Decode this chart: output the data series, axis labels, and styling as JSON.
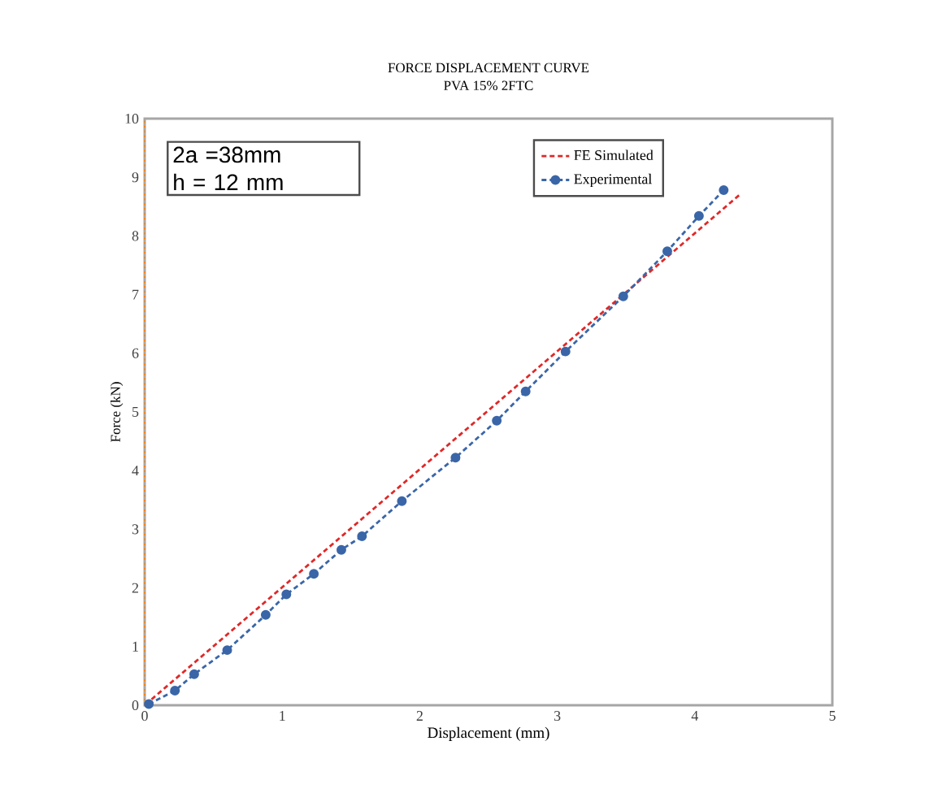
{
  "chart_data": {
    "type": "line",
    "title": "FORCE DISPLACEMENT CURVE",
    "subtitle": "PVA 15% 2FTC",
    "xlabel": "Displacement (mm)",
    "ylabel": "Force (kN)",
    "annotations": [
      "2a =38mm",
      "h  = 12 mm"
    ],
    "series": [
      {
        "name": "FE Simulated",
        "color": "#e02828",
        "marker": "none",
        "x": [
          0.05,
          4.33
        ],
        "values": [
          0.1,
          8.71
        ]
      },
      {
        "name": "Experimental",
        "color": "#3a66a8",
        "marker": "circle",
        "x": [
          0.03,
          0.22,
          0.36,
          0.6,
          0.88,
          1.03,
          1.23,
          1.43,
          1.58,
          1.87,
          2.26,
          2.56,
          2.77,
          3.06,
          3.48,
          3.8,
          4.03,
          4.21
        ],
        "values": [
          0.02,
          0.25,
          0.53,
          0.94,
          1.54,
          1.89,
          2.24,
          2.65,
          2.88,
          3.48,
          4.22,
          4.85,
          5.35,
          6.03,
          6.97,
          7.74,
          8.34,
          8.78
        ]
      }
    ],
    "line_style": "dashed",
    "legend": "top right",
    "grid": false,
    "xlim": [
      0,
      5
    ],
    "ylim": [
      0,
      10
    ],
    "xticks": [
      0,
      1,
      2,
      3,
      4,
      5
    ],
    "yticks": [
      0,
      1,
      2,
      3,
      4,
      5,
      6,
      7,
      8,
      9,
      10
    ]
  }
}
